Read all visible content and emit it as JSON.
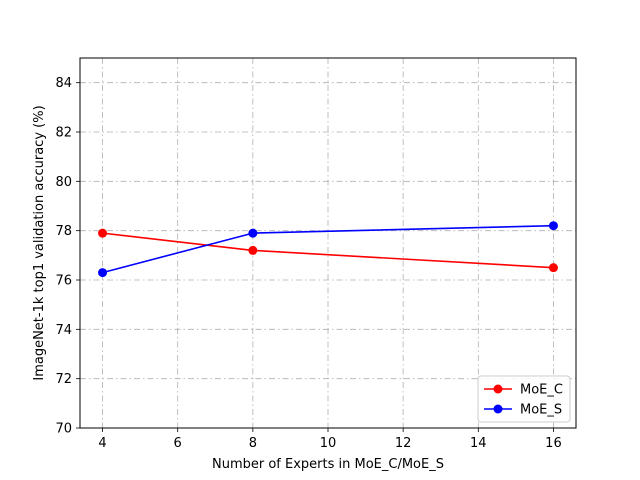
{
  "chart_data": {
    "type": "line",
    "title": "",
    "xlabel": "Number of Experts in MoE_C/MoE_S",
    "ylabel": "ImageNet-1k top1 validation accuracy (%)",
    "xlim": [
      3.4,
      16.6
    ],
    "ylim": [
      70,
      85
    ],
    "xticks": [
      4,
      6,
      8,
      10,
      12,
      14,
      16
    ],
    "yticks": [
      70,
      72,
      74,
      76,
      78,
      80,
      82,
      84
    ],
    "grid": true,
    "legend_position": "bottom-right",
    "x": [
      4,
      8,
      16
    ],
    "series": [
      {
        "name": "MoE_C",
        "color": "#ff0000",
        "values": [
          77.9,
          77.2,
          76.5
        ]
      },
      {
        "name": "MoE_S",
        "color": "#0000ff",
        "values": [
          76.3,
          77.9,
          78.2
        ]
      }
    ]
  }
}
